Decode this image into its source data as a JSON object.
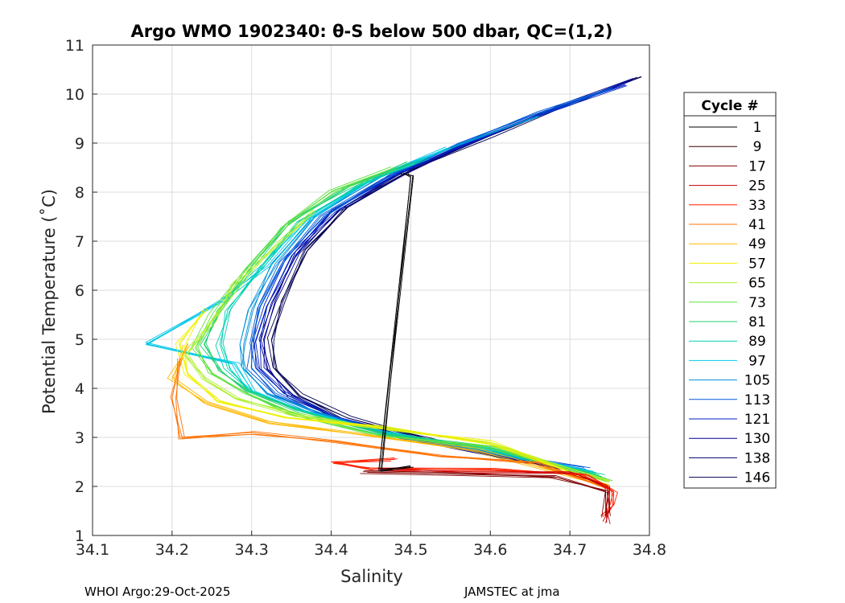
{
  "chart_data": {
    "type": "line",
    "title": "Argo WMO 1902340: θ-S below 500 dbar,  QC=(1,2)",
    "xlabel": "Salinity",
    "ylabel": "Potential Temperature (˚C)",
    "xlim": [
      34.1,
      34.8
    ],
    "ylim": [
      1,
      11
    ],
    "xticks": [
      "34.1",
      "34.2",
      "34.3",
      "34.4",
      "34.5",
      "34.6",
      "34.7",
      "34.8"
    ],
    "yticks": [
      "1",
      "2",
      "3",
      "4",
      "5",
      "6",
      "7",
      "8",
      "9",
      "10",
      "11"
    ],
    "grid": true,
    "legend_position": "right-outside",
    "legend_title": "Cycle #",
    "series": [
      {
        "name": "1",
        "color": "#000000"
      },
      {
        "name": "9",
        "color": "#3a0000"
      },
      {
        "name": "17",
        "color": "#800000"
      },
      {
        "name": "25",
        "color": "#c80000"
      },
      {
        "name": "33",
        "color": "#ff2000"
      },
      {
        "name": "41",
        "color": "#ff7000"
      },
      {
        "name": "49",
        "color": "#ffb800"
      },
      {
        "name": "57",
        "color": "#f0f000"
      },
      {
        "name": "65",
        "color": "#b0f030"
      },
      {
        "name": "73",
        "color": "#60e040"
      },
      {
        "name": "81",
        "color": "#20d070"
      },
      {
        "name": "89",
        "color": "#00d0b0"
      },
      {
        "name": "97",
        "color": "#00c8e8"
      },
      {
        "name": "105",
        "color": "#0090d8"
      },
      {
        "name": "113",
        "color": "#0058d8"
      },
      {
        "name": "121",
        "color": "#0020c0"
      },
      {
        "name": "130",
        "color": "#000090"
      },
      {
        "name": "138",
        "color": "#000070"
      },
      {
        "name": "146",
        "color": "#000050"
      }
    ],
    "ts_curves": [
      {
        "color": "#000050",
        "points": [
          [
            34.79,
            10.35
          ],
          [
            34.7,
            9.8
          ],
          [
            34.6,
            9.15
          ],
          [
            34.5,
            8.45
          ],
          [
            34.42,
            7.7
          ],
          [
            34.37,
            6.8
          ],
          [
            34.34,
            5.8
          ],
          [
            34.325,
            5.0
          ],
          [
            34.33,
            4.4
          ],
          [
            34.36,
            3.85
          ],
          [
            34.42,
            3.4
          ],
          [
            34.52,
            2.95
          ],
          [
            34.62,
            2.6
          ],
          [
            34.7,
            2.35
          ]
        ]
      },
      {
        "color": "#000090",
        "points": [
          [
            34.78,
            10.3
          ],
          [
            34.69,
            9.75
          ],
          [
            34.59,
            9.1
          ],
          [
            34.49,
            8.4
          ],
          [
            34.41,
            7.65
          ],
          [
            34.36,
            6.75
          ],
          [
            34.33,
            5.75
          ],
          [
            34.315,
            5.0
          ],
          [
            34.32,
            4.4
          ],
          [
            34.35,
            3.85
          ],
          [
            34.41,
            3.4
          ],
          [
            34.51,
            2.95
          ],
          [
            34.61,
            2.6
          ],
          [
            34.71,
            2.3
          ]
        ]
      },
      {
        "color": "#0020c0",
        "points": [
          [
            34.77,
            10.2
          ],
          [
            34.68,
            9.7
          ],
          [
            34.58,
            9.05
          ],
          [
            34.48,
            8.35
          ],
          [
            34.4,
            7.6
          ],
          [
            34.35,
            6.7
          ],
          [
            34.32,
            5.7
          ],
          [
            34.305,
            4.95
          ],
          [
            34.31,
            4.4
          ],
          [
            34.34,
            3.9
          ],
          [
            34.4,
            3.45
          ],
          [
            34.5,
            3.0
          ],
          [
            34.6,
            2.65
          ],
          [
            34.72,
            2.3
          ]
        ]
      },
      {
        "color": "#0058d8",
        "points": [
          [
            34.75,
            10.1
          ],
          [
            34.66,
            9.6
          ],
          [
            34.56,
            9.0
          ],
          [
            34.47,
            8.3
          ],
          [
            34.39,
            7.5
          ],
          [
            34.34,
            6.6
          ],
          [
            34.31,
            5.65
          ],
          [
            34.3,
            4.95
          ],
          [
            34.3,
            4.4
          ],
          [
            34.33,
            3.9
          ],
          [
            34.39,
            3.45
          ],
          [
            34.49,
            3.0
          ],
          [
            34.6,
            2.7
          ],
          [
            34.72,
            2.35
          ]
        ]
      },
      {
        "color": "#0090d8",
        "points": [
          [
            34.66,
            9.55
          ],
          [
            34.56,
            8.95
          ],
          [
            34.46,
            8.3
          ],
          [
            34.38,
            7.5
          ],
          [
            34.33,
            6.55
          ],
          [
            34.3,
            5.6
          ],
          [
            34.29,
            4.9
          ],
          [
            34.29,
            4.4
          ],
          [
            34.32,
            3.9
          ],
          [
            34.38,
            3.5
          ],
          [
            34.48,
            3.05
          ],
          [
            34.6,
            2.7
          ],
          [
            34.73,
            2.3
          ]
        ]
      },
      {
        "color": "#00c8e8",
        "points": [
          [
            34.55,
            8.9
          ],
          [
            34.45,
            8.25
          ],
          [
            34.37,
            7.45
          ],
          [
            34.32,
            6.5
          ],
          [
            34.26,
            5.8
          ],
          [
            34.17,
            4.9
          ],
          [
            34.28,
            4.5
          ],
          [
            34.3,
            3.95
          ],
          [
            34.36,
            3.55
          ],
          [
            34.47,
            3.1
          ],
          [
            34.6,
            2.75
          ],
          [
            34.73,
            2.3
          ]
        ]
      },
      {
        "color": "#00d0b0",
        "points": [
          [
            34.52,
            8.7
          ],
          [
            34.44,
            8.15
          ],
          [
            34.36,
            7.4
          ],
          [
            34.31,
            6.45
          ],
          [
            34.27,
            5.6
          ],
          [
            34.26,
            4.9
          ],
          [
            34.27,
            4.4
          ],
          [
            34.3,
            3.95
          ],
          [
            34.36,
            3.55
          ],
          [
            34.46,
            3.1
          ],
          [
            34.6,
            2.75
          ],
          [
            34.74,
            2.2
          ]
        ]
      },
      {
        "color": "#20d070",
        "points": [
          [
            34.5,
            8.6
          ],
          [
            34.42,
            8.1
          ],
          [
            34.35,
            7.4
          ],
          [
            34.3,
            6.5
          ],
          [
            34.26,
            5.55
          ],
          [
            34.24,
            4.9
          ],
          [
            34.26,
            4.35
          ],
          [
            34.3,
            3.9
          ],
          [
            34.36,
            3.5
          ],
          [
            34.47,
            3.05
          ],
          [
            34.6,
            2.8
          ],
          [
            34.74,
            2.2
          ]
        ]
      },
      {
        "color": "#60e040",
        "points": [
          [
            34.48,
            8.5
          ],
          [
            34.4,
            8.0
          ],
          [
            34.34,
            7.3
          ],
          [
            34.29,
            6.4
          ],
          [
            34.25,
            5.5
          ],
          [
            34.23,
            4.85
          ],
          [
            34.25,
            4.3
          ],
          [
            34.29,
            3.9
          ],
          [
            34.35,
            3.5
          ],
          [
            34.46,
            3.05
          ],
          [
            34.6,
            2.8
          ],
          [
            34.75,
            2.1
          ]
        ]
      },
      {
        "color": "#b0f030",
        "points": [
          [
            34.38,
            7.6
          ],
          [
            34.33,
            6.9
          ],
          [
            34.28,
            6.1
          ],
          [
            34.25,
            5.4
          ],
          [
            34.22,
            4.7
          ],
          [
            34.24,
            4.2
          ],
          [
            34.28,
            3.8
          ],
          [
            34.36,
            3.45
          ],
          [
            34.48,
            3.15
          ],
          [
            34.6,
            2.9
          ],
          [
            34.75,
            2.1
          ]
        ]
      },
      {
        "color": "#f0f000",
        "points": [
          [
            34.24,
            5.6
          ],
          [
            34.21,
            4.9
          ],
          [
            34.22,
            4.3
          ],
          [
            34.26,
            3.75
          ],
          [
            34.34,
            3.4
          ],
          [
            34.46,
            3.2
          ],
          [
            34.6,
            2.9
          ],
          [
            34.75,
            2.0
          ]
        ]
      },
      {
        "color": "#ffb800",
        "points": [
          [
            34.22,
            4.9
          ],
          [
            34.2,
            4.2
          ],
          [
            34.24,
            3.7
          ],
          [
            34.32,
            3.3
          ],
          [
            34.44,
            3.05
          ],
          [
            34.58,
            2.75
          ],
          [
            34.75,
            2.0
          ]
        ]
      },
      {
        "color": "#ff7000",
        "points": [
          [
            34.21,
            4.6
          ],
          [
            34.2,
            3.8
          ],
          [
            34.21,
            3.0
          ],
          [
            34.3,
            3.1
          ],
          [
            34.4,
            2.9
          ],
          [
            34.54,
            2.6
          ],
          [
            34.66,
            2.5
          ],
          [
            34.75,
            1.95
          ]
        ]
      },
      {
        "color": "#ff2000",
        "points": [
          [
            34.48,
            2.55
          ],
          [
            34.4,
            2.5
          ],
          [
            34.45,
            2.35
          ],
          [
            34.6,
            2.35
          ],
          [
            34.72,
            2.25
          ],
          [
            34.755,
            1.9
          ],
          [
            34.75,
            1.6
          ],
          [
            34.74,
            1.4
          ]
        ]
      },
      {
        "color": "#c80000",
        "points": [
          [
            34.46,
            2.35
          ],
          [
            34.58,
            2.3
          ],
          [
            34.7,
            2.3
          ],
          [
            34.75,
            2.0
          ],
          [
            34.75,
            1.55
          ],
          [
            34.745,
            1.25
          ]
        ]
      },
      {
        "color": "#800000",
        "points": [
          [
            34.44,
            2.3
          ],
          [
            34.56,
            2.25
          ],
          [
            34.68,
            2.2
          ],
          [
            34.745,
            1.9
          ],
          [
            34.745,
            1.4
          ]
        ]
      },
      {
        "color": "#000000",
        "points": [
          [
            34.49,
            8.4
          ],
          [
            34.5,
            8.3
          ],
          [
            34.46,
            2.35
          ],
          [
            34.5,
            2.4
          ]
        ]
      }
    ]
  },
  "footer": {
    "left": "WHOI Argo:29-Oct-2025",
    "right": "JAMSTEC at jma"
  }
}
